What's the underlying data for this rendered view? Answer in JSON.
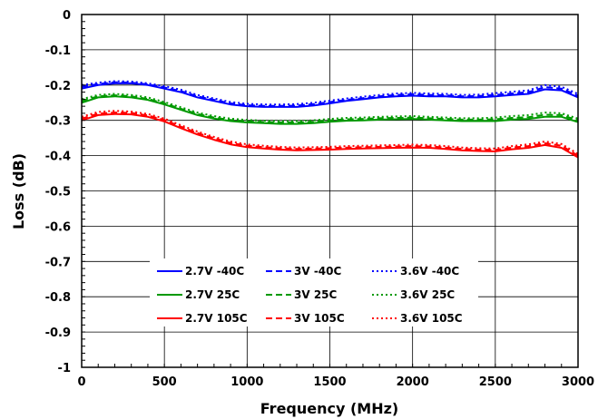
{
  "chart_data": {
    "type": "line",
    "title": "",
    "xlabel": "Frequency (MHz)",
    "ylabel": "Loss (dB)",
    "xlim": [
      0,
      3000
    ],
    "ylim": [
      -1,
      0
    ],
    "xticks": [
      "0",
      "500",
      "1000",
      "1500",
      "2000",
      "2500",
      "3000"
    ],
    "xtick_values": [
      0,
      500,
      1000,
      1500,
      2000,
      2500,
      3000
    ],
    "yticks": [
      "0",
      "-0.1",
      "-0.2",
      "-0.3",
      "-0.4",
      "-0.5",
      "-0.6",
      "-0.7",
      "-0.8",
      "-0.9",
      "-1"
    ],
    "ytick_values": [
      0,
      -0.1,
      -0.2,
      -0.3,
      -0.4,
      -0.5,
      -0.6,
      -0.7,
      -0.8,
      -0.9,
      -1
    ],
    "grid": true,
    "legend_position": "bottom-center",
    "x": [
      0,
      100,
      200,
      300,
      400,
      500,
      600,
      700,
      800,
      900,
      1000,
      1100,
      1200,
      1300,
      1400,
      1500,
      1600,
      1700,
      1800,
      1900,
      2000,
      2100,
      2200,
      2300,
      2400,
      2500,
      2600,
      2700,
      2800,
      2900,
      3000
    ],
    "series": [
      {
        "name": "2.7V -40C",
        "color": "#0000ff",
        "dash": "solid",
        "values": [
          -0.21,
          -0.2,
          -0.195,
          -0.195,
          -0.2,
          -0.21,
          -0.22,
          -0.235,
          -0.245,
          -0.255,
          -0.26,
          -0.262,
          -0.262,
          -0.262,
          -0.258,
          -0.252,
          -0.245,
          -0.24,
          -0.235,
          -0.232,
          -0.23,
          -0.232,
          -0.232,
          -0.235,
          -0.235,
          -0.232,
          -0.228,
          -0.225,
          -0.212,
          -0.215,
          -0.235
        ]
      },
      {
        "name": "3V -40C",
        "color": "#0000ff",
        "dash": "dash",
        "values": [
          -0.205,
          -0.197,
          -0.192,
          -0.193,
          -0.198,
          -0.207,
          -0.217,
          -0.232,
          -0.242,
          -0.252,
          -0.257,
          -0.259,
          -0.259,
          -0.258,
          -0.254,
          -0.248,
          -0.242,
          -0.237,
          -0.232,
          -0.228,
          -0.226,
          -0.228,
          -0.229,
          -0.232,
          -0.231,
          -0.228,
          -0.224,
          -0.22,
          -0.206,
          -0.21,
          -0.23
        ]
      },
      {
        "name": "3.6V -40C",
        "color": "#0000ff",
        "dash": "dot",
        "values": [
          -0.2,
          -0.193,
          -0.189,
          -0.19,
          -0.195,
          -0.203,
          -0.213,
          -0.228,
          -0.238,
          -0.248,
          -0.253,
          -0.255,
          -0.255,
          -0.254,
          -0.25,
          -0.244,
          -0.238,
          -0.233,
          -0.228,
          -0.224,
          -0.222,
          -0.224,
          -0.225,
          -0.228,
          -0.227,
          -0.223,
          -0.219,
          -0.215,
          -0.2,
          -0.205,
          -0.225
        ]
      },
      {
        "name": "2.7V 25C",
        "color": "#009900",
        "dash": "solid",
        "values": [
          -0.25,
          -0.235,
          -0.232,
          -0.235,
          -0.242,
          -0.255,
          -0.27,
          -0.285,
          -0.295,
          -0.302,
          -0.306,
          -0.308,
          -0.31,
          -0.31,
          -0.308,
          -0.304,
          -0.301,
          -0.3,
          -0.298,
          -0.297,
          -0.296,
          -0.298,
          -0.3,
          -0.302,
          -0.302,
          -0.302,
          -0.298,
          -0.296,
          -0.29,
          -0.29,
          -0.305
        ]
      },
      {
        "name": "3V 25C",
        "color": "#009900",
        "dash": "dash",
        "values": [
          -0.245,
          -0.232,
          -0.229,
          -0.232,
          -0.239,
          -0.252,
          -0.267,
          -0.282,
          -0.292,
          -0.299,
          -0.303,
          -0.305,
          -0.306,
          -0.306,
          -0.304,
          -0.3,
          -0.297,
          -0.296,
          -0.294,
          -0.293,
          -0.292,
          -0.294,
          -0.296,
          -0.298,
          -0.298,
          -0.297,
          -0.293,
          -0.291,
          -0.284,
          -0.285,
          -0.3
        ]
      },
      {
        "name": "3.6V 25C",
        "color": "#009900",
        "dash": "dot",
        "values": [
          -0.24,
          -0.228,
          -0.225,
          -0.228,
          -0.235,
          -0.248,
          -0.263,
          -0.278,
          -0.288,
          -0.295,
          -0.299,
          -0.301,
          -0.302,
          -0.302,
          -0.3,
          -0.296,
          -0.293,
          -0.292,
          -0.29,
          -0.289,
          -0.288,
          -0.29,
          -0.292,
          -0.294,
          -0.294,
          -0.292,
          -0.288,
          -0.285,
          -0.278,
          -0.28,
          -0.295
        ]
      },
      {
        "name": "2.7V 105C",
        "color": "#ff0000",
        "dash": "solid",
        "values": [
          -0.3,
          -0.285,
          -0.282,
          -0.283,
          -0.29,
          -0.303,
          -0.322,
          -0.34,
          -0.355,
          -0.368,
          -0.376,
          -0.38,
          -0.383,
          -0.385,
          -0.384,
          -0.383,
          -0.381,
          -0.38,
          -0.379,
          -0.378,
          -0.377,
          -0.378,
          -0.381,
          -0.385,
          -0.387,
          -0.388,
          -0.382,
          -0.378,
          -0.37,
          -0.378,
          -0.405
        ]
      },
      {
        "name": "3V 105C",
        "color": "#ff0000",
        "dash": "dash",
        "values": [
          -0.295,
          -0.281,
          -0.278,
          -0.279,
          -0.286,
          -0.299,
          -0.318,
          -0.336,
          -0.351,
          -0.364,
          -0.372,
          -0.376,
          -0.379,
          -0.381,
          -0.38,
          -0.379,
          -0.377,
          -0.376,
          -0.375,
          -0.374,
          -0.373,
          -0.374,
          -0.377,
          -0.381,
          -0.383,
          -0.384,
          -0.377,
          -0.373,
          -0.365,
          -0.372,
          -0.4
        ]
      },
      {
        "name": "3.6V 105C",
        "color": "#ff0000",
        "dash": "dot",
        "values": [
          -0.29,
          -0.276,
          -0.273,
          -0.275,
          -0.282,
          -0.295,
          -0.314,
          -0.332,
          -0.347,
          -0.36,
          -0.368,
          -0.372,
          -0.375,
          -0.377,
          -0.376,
          -0.375,
          -0.373,
          -0.372,
          -0.371,
          -0.37,
          -0.369,
          -0.37,
          -0.373,
          -0.377,
          -0.379,
          -0.38,
          -0.373,
          -0.368,
          -0.36,
          -0.367,
          -0.395
        ]
      }
    ]
  }
}
